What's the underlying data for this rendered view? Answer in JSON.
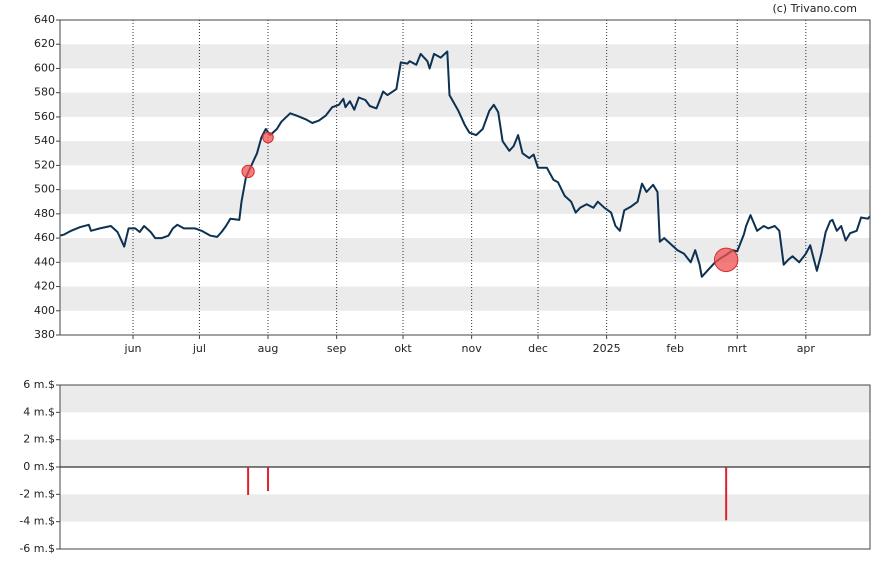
{
  "credit": "(c) Trivano.com",
  "chart_data": [
    {
      "type": "line",
      "xlim": [
        0,
        366
      ],
      "xticks": [
        {
          "value": 33,
          "label": "jun"
        },
        {
          "value": 63,
          "label": "jul"
        },
        {
          "value": 94,
          "label": "aug"
        },
        {
          "value": 125,
          "label": "sep"
        },
        {
          "value": 155,
          "label": "okt"
        },
        {
          "value": 186,
          "label": "nov"
        },
        {
          "value": 216,
          "label": "dec"
        },
        {
          "value": 247,
          "label": "2025"
        },
        {
          "value": 278,
          "label": "feb"
        },
        {
          "value": 306,
          "label": "mrt"
        },
        {
          "value": 337,
          "label": "apr"
        }
      ],
      "ylim": [
        380,
        640
      ],
      "yticks": [
        380,
        400,
        420,
        440,
        460,
        480,
        500,
        520,
        540,
        560,
        580,
        600,
        620,
        640
      ],
      "color": "#0d3152",
      "x": [
        0,
        2,
        5,
        9,
        13,
        14,
        18,
        23,
        26,
        29,
        31,
        34,
        36,
        38,
        41,
        43,
        46,
        49,
        51,
        53,
        56,
        61,
        64,
        68,
        71,
        73,
        75,
        77,
        81,
        82,
        84,
        86,
        89,
        91,
        93,
        95,
        98,
        100,
        104,
        107,
        111,
        114,
        117,
        120,
        123,
        126,
        128,
        129,
        131,
        133,
        135,
        138,
        140,
        143,
        146,
        148,
        152,
        154,
        157,
        158,
        161,
        163,
        166,
        167,
        169,
        172,
        175,
        176,
        180,
        183,
        185,
        188,
        191,
        194,
        196,
        198,
        200,
        203,
        205,
        207,
        209,
        212,
        214,
        216,
        220,
        223,
        225,
        228,
        231,
        233,
        235,
        238,
        241,
        243,
        246,
        249,
        251,
        253,
        255,
        258,
        261,
        263,
        265,
        268,
        270,
        271,
        273,
        276,
        279,
        282,
        285,
        287,
        289,
        290,
        293,
        296,
        299,
        301,
        304,
        306,
        309,
        310,
        312,
        315,
        318,
        320,
        323,
        325,
        327,
        329,
        331,
        334,
        337,
        339,
        342,
        344,
        346,
        348,
        349,
        351,
        353,
        355,
        357,
        360,
        362,
        365,
        366
      ],
      "values": [
        462,
        463,
        466,
        469,
        471,
        466,
        468,
        470,
        465,
        453,
        468,
        468,
        465,
        470,
        465,
        460,
        460,
        462,
        468,
        471,
        468,
        468,
        466,
        462,
        461,
        465,
        470,
        476,
        475,
        490,
        510,
        518,
        530,
        543,
        550,
        545,
        550,
        556,
        563,
        561,
        558,
        555,
        557,
        561,
        568,
        570,
        575,
        568,
        573,
        566,
        576,
        574,
        569,
        567,
        581,
        578,
        583,
        605,
        604,
        606,
        603,
        612,
        606,
        600,
        612,
        609,
        614,
        578,
        565,
        553,
        547,
        545,
        550,
        565,
        570,
        564,
        540,
        532,
        536,
        545,
        530,
        526,
        529,
        518,
        518,
        508,
        506,
        495,
        490,
        481,
        485,
        488,
        485,
        490,
        485,
        481,
        470,
        466,
        483,
        486,
        490,
        505,
        498,
        504,
        498,
        457,
        460,
        455,
        450,
        447,
        440,
        450,
        438,
        428,
        434,
        440,
        444,
        446,
        450,
        449,
        463,
        470,
        479,
        466,
        470,
        468,
        470,
        466,
        438,
        442,
        445,
        440,
        447,
        454,
        433,
        447,
        465,
        474,
        475,
        466,
        470,
        458,
        464,
        466,
        477,
        476,
        478
      ],
      "markers": {
        "color": "#f05050",
        "x": [
          85,
          94,
          301
        ],
        "values": [
          515,
          543,
          442
        ]
      }
    },
    {
      "type": "bar",
      "xlim": [
        0,
        366
      ],
      "ylim": [
        -6,
        6
      ],
      "yticks": [
        {
          "value": -6,
          "label": "-6 m.$"
        },
        {
          "value": -4,
          "label": "-4 m.$"
        },
        {
          "value": -2,
          "label": "-2 m.$"
        },
        {
          "value": 0,
          "label": "0 m.$"
        },
        {
          "value": 2,
          "label": "2 m.$"
        },
        {
          "value": 4,
          "label": "4 m.$"
        },
        {
          "value": 6,
          "label": "6 m.$"
        }
      ],
      "color": "#e0202a",
      "x": [
        85,
        94,
        301
      ],
      "values": [
        -2.05,
        -1.76,
        -3.9
      ]
    }
  ]
}
